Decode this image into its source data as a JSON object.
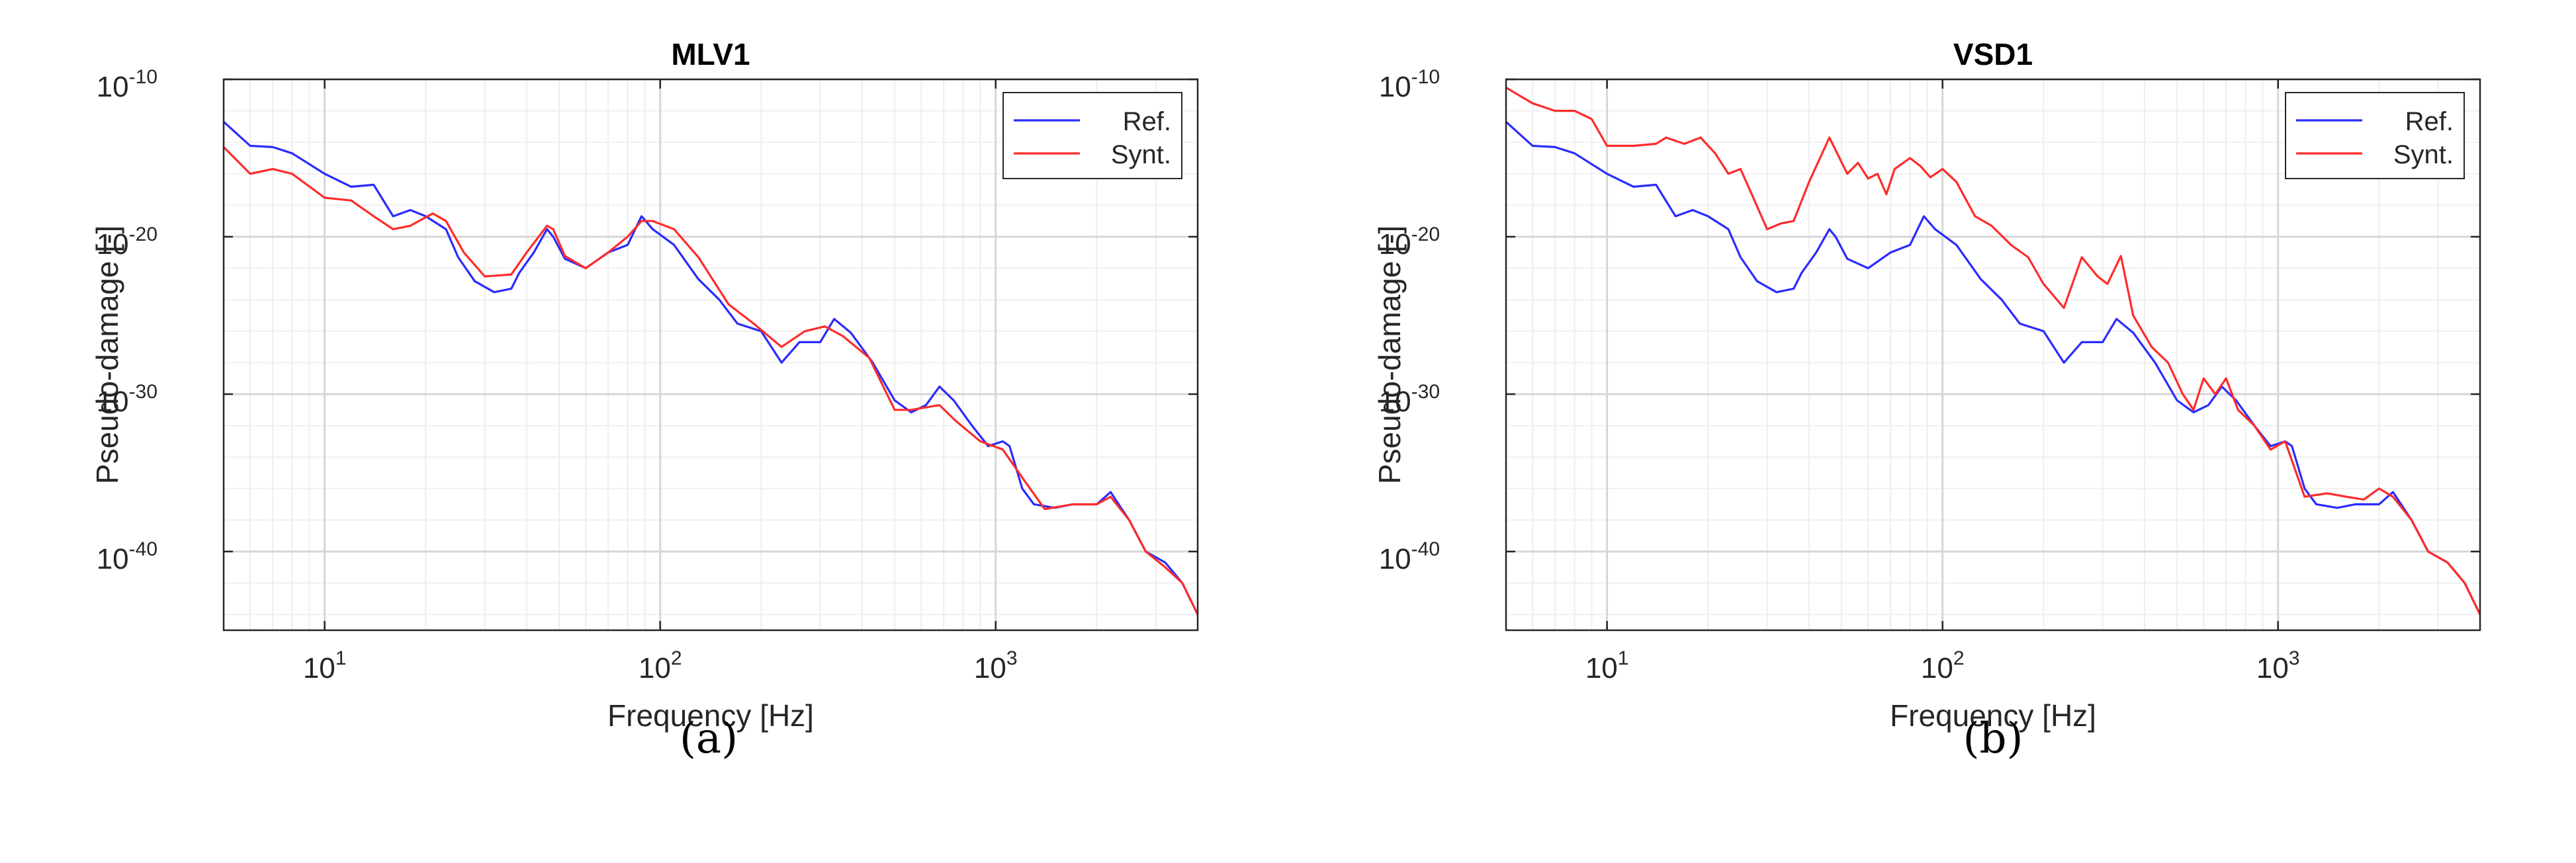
{
  "panels": [
    {
      "caption": "(a)"
    },
    {
      "caption": "(b)"
    }
  ],
  "chart_data": [
    {
      "type": "line",
      "title": "MLV1",
      "xlabel": "Frequency [Hz]",
      "ylabel": "Pseudo-damage [-]",
      "x_scale": "log",
      "y_scale": "log",
      "xlim": [
        5,
        4000
      ],
      "ylim": [
        1e-45,
        1e-10
      ],
      "x_ticks": [
        10,
        100,
        1000
      ],
      "x_tick_labels": [
        [
          "10",
          "1"
        ],
        [
          "10",
          "2"
        ],
        [
          "10",
          "3"
        ]
      ],
      "y_ticks": [
        1e-10,
        1e-20,
        1e-30,
        1e-40
      ],
      "y_tick_labels": [
        [
          "10",
          "-10"
        ],
        [
          "10",
          "-20"
        ],
        [
          "10",
          "-30"
        ],
        [
          "10",
          "-40"
        ]
      ],
      "grid": true,
      "legend_position": "top-right",
      "series": [
        {
          "name": "Ref.",
          "color": "#2b2bff",
          "points": [
            [
              5,
              2e-13
            ],
            [
              6,
              6e-15
            ],
            [
              7,
              5e-15
            ],
            [
              8,
              2e-15
            ],
            [
              10,
              1e-16
            ],
            [
              12,
              1.5e-17
            ],
            [
              14,
              2e-17
            ],
            [
              16,
              2e-19
            ],
            [
              18,
              5e-19
            ],
            [
              20,
              2e-19
            ],
            [
              23,
              3e-20
            ],
            [
              25,
              5e-22
            ],
            [
              28,
              1.5e-23
            ],
            [
              32,
              3e-24
            ],
            [
              36,
              5e-24
            ],
            [
              38,
              5e-23
            ],
            [
              42,
              1e-21
            ],
            [
              46,
              3e-20
            ],
            [
              48,
              1e-20
            ],
            [
              52,
              4e-22
            ],
            [
              60,
              1e-22
            ],
            [
              70,
              1e-21
            ],
            [
              80,
              3e-21
            ],
            [
              88,
              2e-19
            ],
            [
              95,
              3e-20
            ],
            [
              110,
              3e-21
            ],
            [
              130,
              2e-23
            ],
            [
              150,
              1e-24
            ],
            [
              170,
              3e-26
            ],
            [
              200,
              1e-26
            ],
            [
              230,
              1e-28
            ],
            [
              260,
              2e-27
            ],
            [
              300,
              2e-27
            ],
            [
              330,
              6e-26
            ],
            [
              370,
              8e-27
            ],
            [
              430,
              1e-28
            ],
            [
              500,
              4e-31
            ],
            [
              560,
              7e-32
            ],
            [
              620,
              2e-31
            ],
            [
              680,
              3e-30
            ],
            [
              750,
              4e-31
            ],
            [
              850,
              1e-32
            ],
            [
              950,
              5e-34
            ],
            [
              1050,
              1e-33
            ],
            [
              1100,
              5e-34
            ],
            [
              1200,
              1e-36
            ],
            [
              1300,
              1e-37
            ],
            [
              1500,
              6e-38
            ],
            [
              1700,
              1e-37
            ],
            [
              2000,
              1e-37
            ],
            [
              2200,
              6e-37
            ],
            [
              2500,
              1e-38
            ],
            [
              2800,
              1e-40
            ],
            [
              3200,
              2e-41
            ],
            [
              3600,
              1e-42
            ],
            [
              4000,
              1e-44
            ]
          ]
        },
        {
          "name": "Synt.",
          "color": "#ff2b2b",
          "points": [
            [
              5,
              5e-15
            ],
            [
              6,
              1e-16
            ],
            [
              7,
              2e-16
            ],
            [
              8,
              1e-16
            ],
            [
              10,
              3e-18
            ],
            [
              12,
              2e-18
            ],
            [
              14,
              2e-19
            ],
            [
              16,
              3e-20
            ],
            [
              18,
              5e-20
            ],
            [
              21,
              3e-19
            ],
            [
              23,
              1e-19
            ],
            [
              26,
              1e-21
            ],
            [
              30,
              3e-23
            ],
            [
              36,
              4e-23
            ],
            [
              40,
              1e-21
            ],
            [
              46,
              5e-20
            ],
            [
              48,
              3e-20
            ],
            [
              52,
              6e-22
            ],
            [
              60,
              1e-22
            ],
            [
              70,
              1e-21
            ],
            [
              80,
              1e-20
            ],
            [
              88,
              1e-19
            ],
            [
              95,
              1e-19
            ],
            [
              110,
              3e-20
            ],
            [
              130,
              5e-22
            ],
            [
              160,
              5e-25
            ],
            [
              190,
              3e-26
            ],
            [
              230,
              1e-27
            ],
            [
              270,
              1e-26
            ],
            [
              310,
              2e-26
            ],
            [
              350,
              5e-27
            ],
            [
              420,
              2e-28
            ],
            [
              500,
              1e-31
            ],
            [
              560,
              1e-31
            ],
            [
              680,
              2e-31
            ],
            [
              760,
              2e-32
            ],
            [
              900,
              1e-33
            ],
            [
              1050,
              3e-34
            ],
            [
              1200,
              5e-36
            ],
            [
              1400,
              5e-38
            ],
            [
              1700,
              1e-37
            ],
            [
              2000,
              1e-37
            ],
            [
              2200,
              3e-37
            ],
            [
              2500,
              1e-38
            ],
            [
              2800,
              1e-40
            ],
            [
              3200,
              1e-41
            ],
            [
              3600,
              1e-42
            ],
            [
              4000,
              1e-44
            ]
          ]
        }
      ]
    },
    {
      "type": "line",
      "title": "VSD1",
      "xlabel": "Frequency [Hz]",
      "ylabel": "Pseudo-damage [-]",
      "x_scale": "log",
      "y_scale": "log",
      "xlim": [
        5,
        4000
      ],
      "ylim": [
        1e-45,
        1e-10
      ],
      "x_ticks": [
        10,
        100,
        1000
      ],
      "x_tick_labels": [
        [
          "10",
          "1"
        ],
        [
          "10",
          "2"
        ],
        [
          "10",
          "3"
        ]
      ],
      "y_ticks": [
        1e-10,
        1e-20,
        1e-30,
        1e-40
      ],
      "y_tick_labels": [
        [
          "10",
          "-10"
        ],
        [
          "10",
          "-20"
        ],
        [
          "10",
          "-30"
        ],
        [
          "10",
          "-40"
        ]
      ],
      "grid": true,
      "legend_position": "top-right",
      "series": [
        {
          "name": "Ref.",
          "color": "#2b2bff",
          "points": [
            [
              5,
              2e-13
            ],
            [
              6,
              6e-15
            ],
            [
              7,
              5e-15
            ],
            [
              8,
              2e-15
            ],
            [
              10,
              1e-16
            ],
            [
              12,
              1.5e-17
            ],
            [
              14,
              2e-17
            ],
            [
              16,
              2e-19
            ],
            [
              18,
              5e-19
            ],
            [
              20,
              2e-19
            ],
            [
              23,
              3e-20
            ],
            [
              25,
              5e-22
            ],
            [
              28,
              1.5e-23
            ],
            [
              32,
              3e-24
            ],
            [
              36,
              5e-24
            ],
            [
              38,
              5e-23
            ],
            [
              42,
              1e-21
            ],
            [
              46,
              3e-20
            ],
            [
              48,
              1e-20
            ],
            [
              52,
              4e-22
            ],
            [
              60,
              1e-22
            ],
            [
              70,
              1e-21
            ],
            [
              80,
              3e-21
            ],
            [
              88,
              2e-19
            ],
            [
              95,
              3e-20
            ],
            [
              110,
              3e-21
            ],
            [
              130,
              2e-23
            ],
            [
              150,
              1e-24
            ],
            [
              170,
              3e-26
            ],
            [
              200,
              1e-26
            ],
            [
              230,
              1e-28
            ],
            [
              260,
              2e-27
            ],
            [
              300,
              2e-27
            ],
            [
              330,
              6e-26
            ],
            [
              370,
              8e-27
            ],
            [
              430,
              1e-28
            ],
            [
              500,
              4e-31
            ],
            [
              560,
              7e-32
            ],
            [
              620,
              2e-31
            ],
            [
              680,
              3e-30
            ],
            [
              750,
              4e-31
            ],
            [
              850,
              1e-32
            ],
            [
              950,
              5e-34
            ],
            [
              1050,
              1e-33
            ],
            [
              1100,
              5e-34
            ],
            [
              1200,
              1e-36
            ],
            [
              1300,
              1e-37
            ],
            [
              1500,
              6e-38
            ],
            [
              1700,
              1e-37
            ],
            [
              2000,
              1e-37
            ],
            [
              2200,
              6e-37
            ],
            [
              2500,
              1e-38
            ],
            [
              2800,
              1e-40
            ],
            [
              3200,
              2e-41
            ],
            [
              3600,
              1e-42
            ],
            [
              4000,
              1e-44
            ]
          ]
        },
        {
          "name": "Synt.",
          "color": "#ff2b2b",
          "points": [
            [
              5,
              3e-11
            ],
            [
              6,
              3e-12
            ],
            [
              7,
              1e-12
            ],
            [
              8,
              1e-12
            ],
            [
              9,
              3e-13
            ],
            [
              10,
              6e-15
            ],
            [
              12,
              6e-15
            ],
            [
              14,
              8e-15
            ],
            [
              15,
              2e-14
            ],
            [
              17,
              8e-15
            ],
            [
              19,
              2e-14
            ],
            [
              21,
              2e-15
            ],
            [
              23,
              1e-16
            ],
            [
              25,
              2e-16
            ],
            [
              27,
              5e-18
            ],
            [
              30,
              3e-20
            ],
            [
              33,
              7e-20
            ],
            [
              36,
              1e-19
            ],
            [
              40,
              3e-17
            ],
            [
              46,
              2e-14
            ],
            [
              52,
              1e-16
            ],
            [
              56,
              5e-16
            ],
            [
              60,
              5e-17
            ],
            [
              64,
              1e-16
            ],
            [
              68,
              5e-18
            ],
            [
              72,
              2e-16
            ],
            [
              80,
              1e-15
            ],
            [
              86,
              3e-16
            ],
            [
              92,
              6e-17
            ],
            [
              100,
              2e-16
            ],
            [
              110,
              3e-17
            ],
            [
              125,
              2e-19
            ],
            [
              140,
              5e-20
            ],
            [
              160,
              3e-21
            ],
            [
              180,
              5e-22
            ],
            [
              200,
              1e-23
            ],
            [
              230,
              3e-25
            ],
            [
              260,
              5e-22
            ],
            [
              290,
              3e-23
            ],
            [
              310,
              1e-23
            ],
            [
              340,
              6e-22
            ],
            [
              370,
              1e-25
            ],
            [
              420,
              1e-27
            ],
            [
              470,
              1e-28
            ],
            [
              520,
              1e-30
            ],
            [
              560,
              1e-31
            ],
            [
              600,
              1e-29
            ],
            [
              650,
              1e-30
            ],
            [
              700,
              1e-29
            ],
            [
              760,
              1e-31
            ],
            [
              850,
              1e-32
            ],
            [
              950,
              3e-34
            ],
            [
              1050,
              1e-33
            ],
            [
              1200,
              3e-37
            ],
            [
              1400,
              5e-37
            ],
            [
              1600,
              3e-37
            ],
            [
              1800,
              2e-37
            ],
            [
              2000,
              1e-36
            ],
            [
              2200,
              3e-37
            ],
            [
              2500,
              1e-38
            ],
            [
              2800,
              1e-40
            ],
            [
              3200,
              2e-41
            ],
            [
              3600,
              1e-42
            ],
            [
              4000,
              1e-44
            ]
          ]
        }
      ]
    }
  ]
}
